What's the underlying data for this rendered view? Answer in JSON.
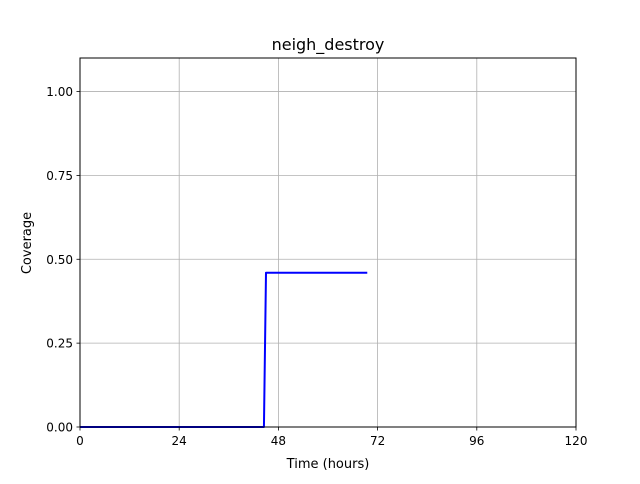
{
  "chart_data": {
    "type": "line",
    "title": "neigh_destroy",
    "xlabel": "Time (hours)",
    "ylabel": "Coverage",
    "xlim": [
      0,
      120
    ],
    "ylim": [
      0,
      1.1
    ],
    "xticks": [
      0,
      24,
      48,
      72,
      96,
      120
    ],
    "xtick_labels": [
      "0",
      "24",
      "48",
      "72",
      "96",
      "120"
    ],
    "yticks": [
      0,
      0.25,
      0.5,
      0.75,
      1.0
    ],
    "ytick_labels": [
      "0.00",
      "0.25",
      "0.50",
      "0.75",
      "1.00"
    ],
    "grid": true,
    "legend": "none",
    "series": [
      {
        "color": "#0000ff",
        "x": [
          0,
          44.5,
          45,
          69.5
        ],
        "y": [
          0,
          0,
          0.46,
          0.46
        ]
      }
    ]
  }
}
